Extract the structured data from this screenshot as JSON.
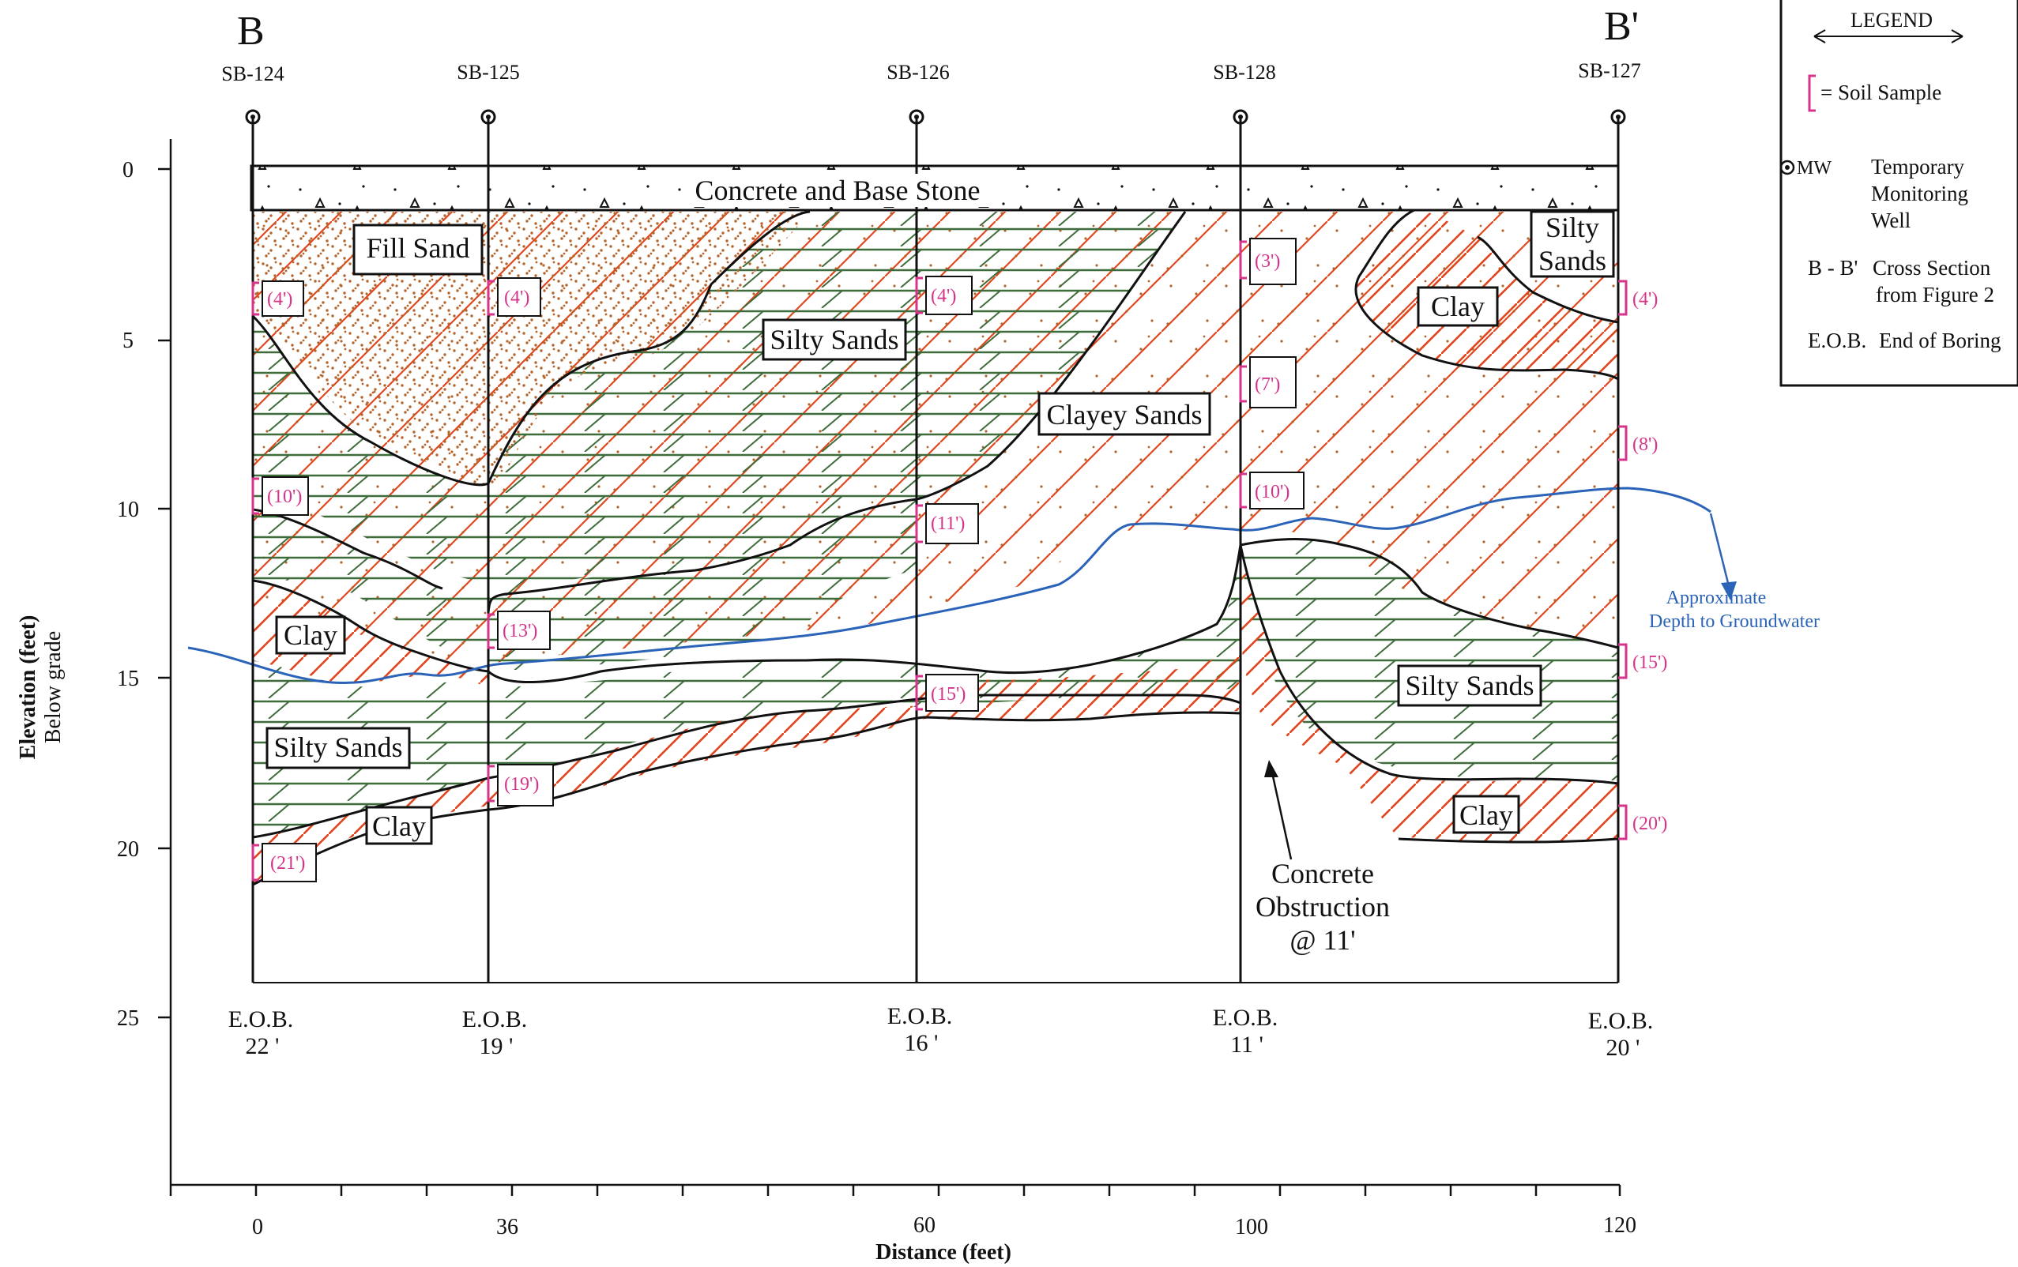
{
  "section": {
    "left_label": "B",
    "right_label": "B'"
  },
  "wells": [
    {
      "id": "SB-124",
      "eob_label": "E.O.B.",
      "eob_depth": "22 '"
    },
    {
      "id": "SB-125",
      "eob_label": "E.O.B.",
      "eob_depth": "19 '"
    },
    {
      "id": "SB-126",
      "eob_label": "E.O.B.",
      "eob_depth": "16 '"
    },
    {
      "id": "SB-128",
      "eob_label": "E.O.B.",
      "eob_depth": "11 '"
    },
    {
      "id": "SB-127",
      "eob_label": "E.O.B.",
      "eob_depth": "20 '"
    }
  ],
  "axes": {
    "y_label": "Elevation (feet)",
    "y_sublabel": "Below grade",
    "x_label": "Distance (feet)",
    "y_ticks": [
      "0",
      "5",
      "10",
      "15",
      "20",
      "25"
    ],
    "x_ticks": [
      "0",
      "36",
      "60",
      "100",
      "120"
    ]
  },
  "layers": {
    "concrete": "Concrete and Base Stone",
    "fill_sand": "Fill Sand",
    "silty_sands_upper": "Silty Sands",
    "clayey_sands": "Clayey Sands",
    "clay_upper_right": "Clay",
    "silty_right": [
      "Silty",
      "Sands"
    ],
    "clay_left": "Clay",
    "silty_sands_lower_left": "Silty Sands",
    "clay_bottom_left": "Clay",
    "silty_sands_lower_right": "Silty Sands",
    "clay_bottom_right": "Clay"
  },
  "samples": {
    "sb124": [
      "(4')",
      "(10')",
      "(21')"
    ],
    "sb125": [
      "(4')",
      "(13')",
      "(19')"
    ],
    "sb126": [
      "(4')",
      "(11')",
      "(15')"
    ],
    "sb128": [
      "(3')",
      "(7')",
      "(10')"
    ],
    "sb127": [
      "(4')",
      "(8')",
      "(15')",
      "(20')"
    ]
  },
  "annotations": {
    "obstruction": [
      "Concrete",
      "Obstruction",
      "@ 11'"
    ],
    "groundwater": [
      "Approximate",
      "Depth to Groundwater"
    ]
  },
  "legend": {
    "title": "LEGEND",
    "soil_sample": "= Soil Sample",
    "mw_symbol": "MW",
    "mw_text": [
      "Temporary",
      "Monitoring",
      "Well"
    ],
    "bb_symbol": "B - B'",
    "bb_text": [
      "Cross Section",
      "from Figure 2"
    ],
    "eob_symbol": "E.O.B.",
    "eob_text": "End of Boring"
  },
  "colors": {
    "fill_sand": "#b5652b",
    "silty_sands": "#3d6b3a",
    "clay": "#e0461c",
    "groundwater": "#2a63b8",
    "sample": "#d6338a"
  }
}
